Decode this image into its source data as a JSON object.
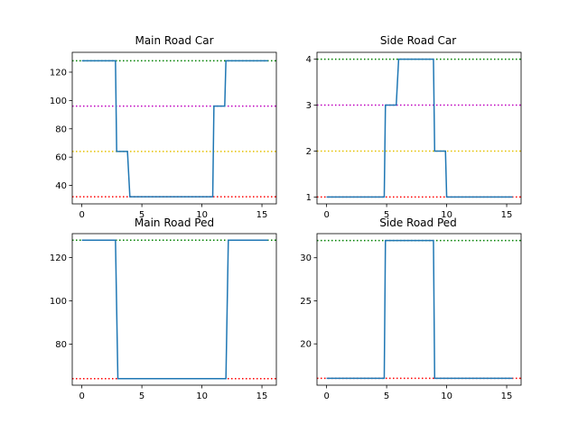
{
  "figure": {
    "background": "#ffffff"
  },
  "chart_data": [
    {
      "type": "line",
      "title": "Main Road Car",
      "xlim": [
        -0.8,
        16.2
      ],
      "ylim": [
        27,
        134
      ],
      "x_ticks": [
        0,
        5,
        10,
        15
      ],
      "y_ticks": [
        40,
        60,
        80,
        100,
        120
      ],
      "series": [
        {
          "color": "#1f77b4",
          "x": [
            0,
            2.8,
            2.9,
            3.8,
            4.0,
            10.9,
            11.0,
            11.9,
            12.0,
            15.5
          ],
          "y": [
            128,
            128,
            64,
            64,
            32,
            32,
            96,
            96,
            128,
            128
          ]
        }
      ],
      "reference_lines": [
        {
          "y": 128,
          "color": "#008000"
        },
        {
          "y": 96,
          "color": "#bf00bf"
        },
        {
          "y": 64,
          "color": "#e5c100"
        },
        {
          "y": 32,
          "color": "#ff0000"
        }
      ]
    },
    {
      "type": "line",
      "title": "Side Road Car",
      "xlim": [
        -0.8,
        16.2
      ],
      "ylim": [
        0.85,
        4.15
      ],
      "x_ticks": [
        0,
        5,
        10,
        15
      ],
      "y_ticks": [
        1,
        2,
        3,
        4
      ],
      "series": [
        {
          "color": "#1f77b4",
          "x": [
            0,
            4.8,
            4.9,
            5.8,
            6.0,
            8.9,
            9.0,
            9.9,
            10.0,
            15.5
          ],
          "y": [
            1,
            1,
            3,
            3,
            4,
            4,
            2,
            2,
            1,
            1
          ]
        }
      ],
      "reference_lines": [
        {
          "y": 4,
          "color": "#008000"
        },
        {
          "y": 3,
          "color": "#bf00bf"
        },
        {
          "y": 2,
          "color": "#e5c100"
        },
        {
          "y": 1,
          "color": "#ff0000"
        }
      ]
    },
    {
      "type": "line",
      "title": "Main Road Ped",
      "xlim": [
        -0.8,
        16.2
      ],
      "ylim": [
        61,
        131
      ],
      "x_ticks": [
        0,
        5,
        10,
        15
      ],
      "y_ticks": [
        80,
        100,
        120
      ],
      "series": [
        {
          "color": "#1f77b4",
          "x": [
            0,
            2.8,
            3.0,
            12.0,
            12.2,
            15.5
          ],
          "y": [
            128,
            128,
            64,
            64,
            128,
            128
          ]
        }
      ],
      "reference_lines": [
        {
          "y": 128,
          "color": "#008000"
        },
        {
          "y": 64,
          "color": "#ff0000"
        }
      ]
    },
    {
      "type": "line",
      "title": "Side Road Ped",
      "xlim": [
        -0.8,
        16.2
      ],
      "ylim": [
        15.2,
        32.8
      ],
      "x_ticks": [
        0,
        5,
        10,
        15
      ],
      "y_ticks": [
        20,
        25,
        30
      ],
      "series": [
        {
          "color": "#1f77b4",
          "x": [
            0,
            4.8,
            4.9,
            8.9,
            9.0,
            15.5
          ],
          "y": [
            16,
            16,
            32,
            32,
            16,
            16
          ]
        }
      ],
      "reference_lines": [
        {
          "y": 32,
          "color": "#008000"
        },
        {
          "y": 16,
          "color": "#ff0000"
        }
      ]
    }
  ]
}
